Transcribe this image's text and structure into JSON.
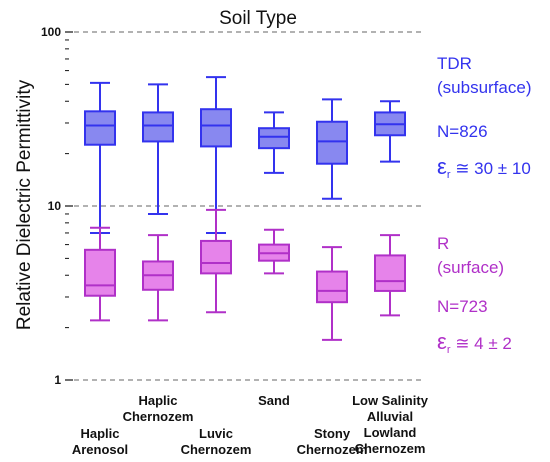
{
  "chart_data": {
    "type": "box",
    "title": "Soil Type",
    "ylabel": "Relative Dielectric Permittivity",
    "yscale": "log",
    "ylim": [
      1,
      100
    ],
    "yticks": [
      {
        "value": 1,
        "label": "1"
      },
      {
        "value": 10,
        "label": "10"
      },
      {
        "value": 100,
        "label": "100"
      }
    ],
    "grid": "dashed at 10 and 100",
    "categories": [
      {
        "lines": [
          "Haplic",
          "Arenosol"
        ],
        "row": "lower"
      },
      {
        "lines": [
          "Haplic",
          "Chernozem"
        ],
        "row": "upper"
      },
      {
        "lines": [
          "Luvic",
          "Chernozem"
        ],
        "row": "lower"
      },
      {
        "lines": [
          "Sand"
        ],
        "row": "upper"
      },
      {
        "lines": [
          "Stony",
          "Chernozem"
        ],
        "row": "lower"
      },
      {
        "lines": [
          "Low Salinity",
          "Alluvial",
          "Lowland",
          "Chernozem"
        ],
        "row": "upper"
      }
    ],
    "series": [
      {
        "name": "TDR",
        "subtitle": "(subsurface)",
        "n_label": "N=826",
        "eps_symbol": "ε",
        "eps_sub": "r",
        "eps_value": " ≅ 30 ± 10",
        "color": "#3333ee",
        "fill": "#8888f0",
        "boxes": [
          {
            "min": 7.0,
            "q1": 22.5,
            "median": 29.0,
            "q3": 35.0,
            "max": 51.0
          },
          {
            "min": 9.0,
            "q1": 23.5,
            "median": 29.0,
            "q3": 34.5,
            "max": 50.0
          },
          {
            "min": 7.0,
            "q1": 22.0,
            "median": 29.0,
            "q3": 36.0,
            "max": 55.0
          },
          {
            "min": 15.5,
            "q1": 21.5,
            "median": 25.0,
            "q3": 28.0,
            "max": 34.5
          },
          {
            "min": 11.0,
            "q1": 17.5,
            "median": 23.5,
            "q3": 30.5,
            "max": 41.0
          },
          {
            "min": 18.0,
            "q1": 25.5,
            "median": 29.5,
            "q3": 34.5,
            "max": 40.0
          }
        ]
      },
      {
        "name": "R",
        "subtitle": "(surface)",
        "n_label": "N=723",
        "eps_symbol": "ε",
        "eps_sub": "r",
        "eps_value": " ≅ 4 ± 2",
        "color": "#b030c8",
        "fill": "#e683ea",
        "boxes": [
          {
            "min": 2.2,
            "q1": 3.05,
            "median": 3.5,
            "q3": 5.6,
            "max": 7.5
          },
          {
            "min": 2.2,
            "q1": 3.3,
            "median": 4.0,
            "q3": 4.8,
            "max": 6.8
          },
          {
            "min": 2.45,
            "q1": 4.1,
            "median": 4.7,
            "q3": 6.3,
            "max": 9.5
          },
          {
            "min": 4.1,
            "q1": 4.85,
            "median": 5.35,
            "q3": 6.0,
            "max": 7.3
          },
          {
            "min": 1.7,
            "q1": 2.8,
            "median": 3.25,
            "q3": 4.2,
            "max": 5.8
          },
          {
            "min": 2.35,
            "q1": 3.25,
            "median": 3.7,
            "q3": 5.2,
            "max": 6.8
          }
        ]
      }
    ]
  }
}
